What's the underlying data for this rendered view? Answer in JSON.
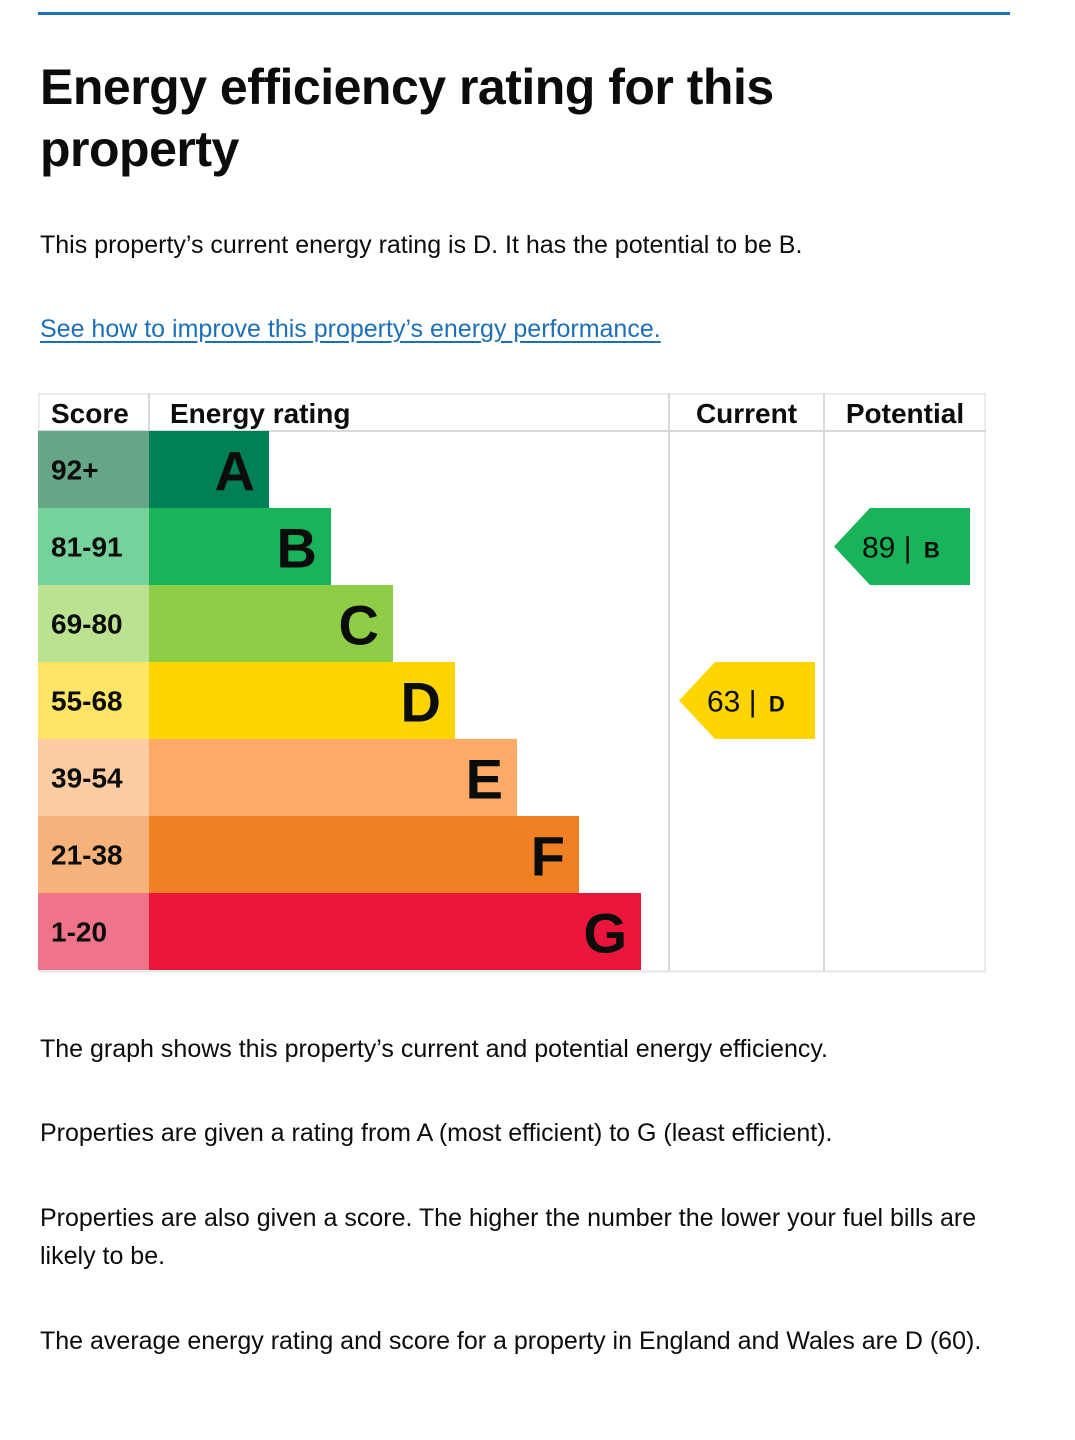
{
  "page": {
    "title": "Energy efficiency rating for this property",
    "current_rating_text": "This property’s current energy rating is D. It has the potential to be B.",
    "improve_link": "See how to improve this property’s energy performance.",
    "graph_explanation": "The graph shows this property’s current and potential energy efficiency.",
    "rating_explanation": "Properties are given a rating from A (most efficient) to G (least efficient).",
    "score_explanation": "Properties are also given a score. The higher the number the lower your fuel bills are likely to be.",
    "average_text": "The average energy rating and score for a property in England and Wales are D (60)."
  },
  "colors": {
    "link": "#1d70b8",
    "rule": "#1d70b8"
  },
  "chart_data": {
    "type": "bar",
    "headers": {
      "score": "Score",
      "rating": "Energy rating",
      "current": "Current",
      "potential": "Potential"
    },
    "bands": [
      {
        "letter": "A",
        "score": "92+",
        "color": "#008054",
        "score_color": "#66a687"
      },
      {
        "letter": "B",
        "score": "81-91",
        "color": "#19b459",
        "score_color": "#75d29b"
      },
      {
        "letter": "C",
        "score": "69-80",
        "color": "#8dce46",
        "score_color": "#bbe290"
      },
      {
        "letter": "D",
        "score": "55-68",
        "color": "#ffd500",
        "score_color": "#ffe566"
      },
      {
        "letter": "E",
        "score": "39-54",
        "color": "#fcaa65",
        "score_color": "#fdcca3"
      },
      {
        "letter": "F",
        "score": "21-38",
        "color": "#ef8023",
        "score_color": "#f5b27b"
      },
      {
        "letter": "G",
        "score": "1-20",
        "color": "#e9153b",
        "score_color": "#f07489"
      }
    ],
    "current": {
      "value": 63,
      "letter": "D",
      "color": "#ffd500"
    },
    "potential": {
      "value": 89,
      "letter": "B",
      "color": "#19b459"
    }
  }
}
